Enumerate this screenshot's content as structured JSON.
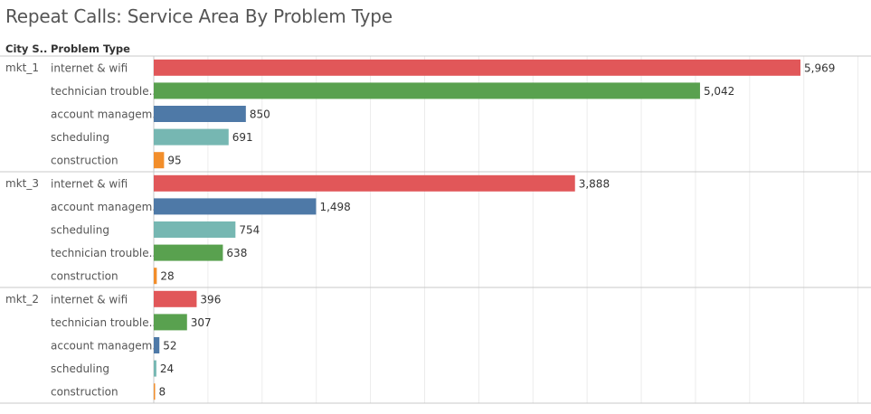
{
  "title": "Repeat Calls: Service Area By Problem Type",
  "headers": {
    "city": "City S..",
    "problem": "Problem Type"
  },
  "colors": {
    "internet & wifi": "#e15759",
    "technician trouble..": "#59a14f",
    "account managem..": "#4e79a7",
    "scheduling": "#76b7b2",
    "construction": "#f28e2b"
  },
  "chart_data": {
    "type": "bar",
    "orientation": "horizontal",
    "xlim": [
      0,
      6000
    ],
    "grid": true,
    "groups": [
      {
        "name": "mkt_1",
        "rows": [
          {
            "category": "internet & wifi",
            "value": 5969,
            "label": "5,969"
          },
          {
            "category": "technician trouble..",
            "value": 5042,
            "label": "5,042"
          },
          {
            "category": "account managem..",
            "value": 850,
            "label": "850"
          },
          {
            "category": "scheduling",
            "value": 691,
            "label": "691"
          },
          {
            "category": "construction",
            "value": 95,
            "label": "95"
          }
        ]
      },
      {
        "name": "mkt_3",
        "rows": [
          {
            "category": "internet & wifi",
            "value": 3888,
            "label": "3,888"
          },
          {
            "category": "account managem..",
            "value": 1498,
            "label": "1,498"
          },
          {
            "category": "scheduling",
            "value": 754,
            "label": "754"
          },
          {
            "category": "technician trouble..",
            "value": 638,
            "label": "638"
          },
          {
            "category": "construction",
            "value": 28,
            "label": "28"
          }
        ]
      },
      {
        "name": "mkt_2",
        "rows": [
          {
            "category": "internet & wifi",
            "value": 396,
            "label": "396"
          },
          {
            "category": "technician trouble..",
            "value": 307,
            "label": "307"
          },
          {
            "category": "account managem..",
            "value": 52,
            "label": "52"
          },
          {
            "category": "scheduling",
            "value": 24,
            "label": "24"
          },
          {
            "category": "construction",
            "value": 8,
            "label": "8"
          }
        ]
      }
    ]
  }
}
